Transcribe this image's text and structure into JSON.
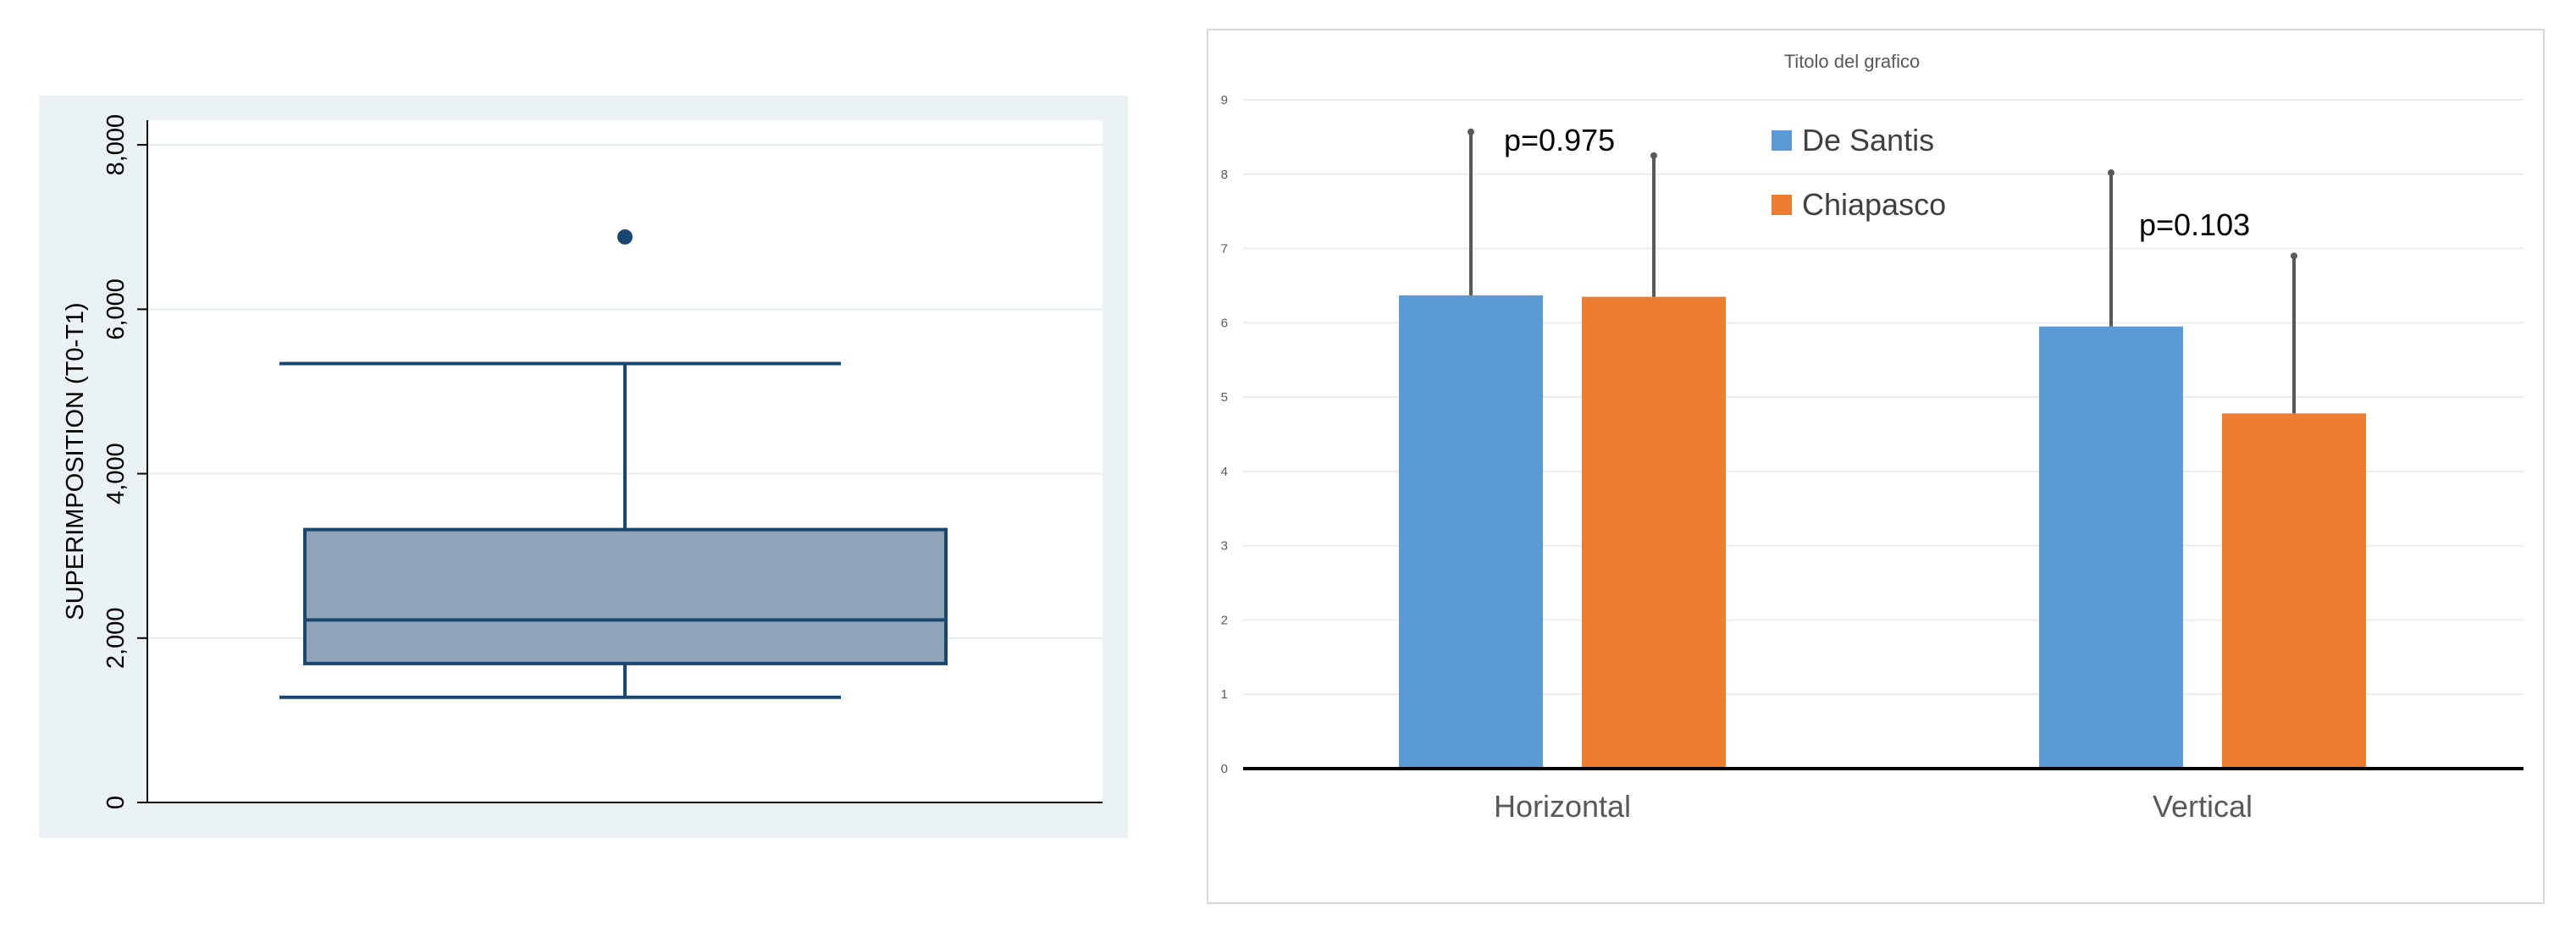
{
  "chart_data": [
    {
      "type": "box",
      "title": "",
      "ylabel": "SUPERIMPOSITION (T0-T1)",
      "ylim": [
        0,
        8300
      ],
      "yticks": [
        0,
        2000,
        4000,
        6000,
        8000
      ],
      "ytick_labels": [
        "0",
        "2,000",
        "4,000",
        "6,000",
        "8,000"
      ],
      "box": {
        "whisker_low": 1280,
        "q1": 1690,
        "median": 2220,
        "q3": 3320,
        "whisker_high": 5340,
        "outliers": [
          6880
        ]
      },
      "grid": true,
      "colors": {
        "plot_bg": "#eaf2f3",
        "box_fill": "#8fa4b8",
        "box_line": "#1a476f"
      }
    },
    {
      "type": "bar",
      "title": "Titolo del grafico",
      "categories": [
        "Horizontal",
        "Vertical"
      ],
      "ylim": [
        0,
        9
      ],
      "yticks": [
        "0",
        "1",
        "2",
        "3",
        "4",
        "5",
        "6",
        "7",
        "8",
        "9"
      ],
      "series": [
        {
          "name": "De Santis",
          "values": [
            6.37,
            5.95
          ],
          "errors": [
            2.2,
            2.07
          ],
          "color": "#5b9bd5"
        },
        {
          "name": "Chiapasco",
          "values": [
            6.35,
            4.78
          ],
          "errors": [
            1.9,
            2.12
          ],
          "color": "#ed7d31"
        }
      ],
      "annotations": [
        "p=0.975",
        "p=0.103"
      ],
      "legend_position": "top-center",
      "grid": true
    }
  ]
}
